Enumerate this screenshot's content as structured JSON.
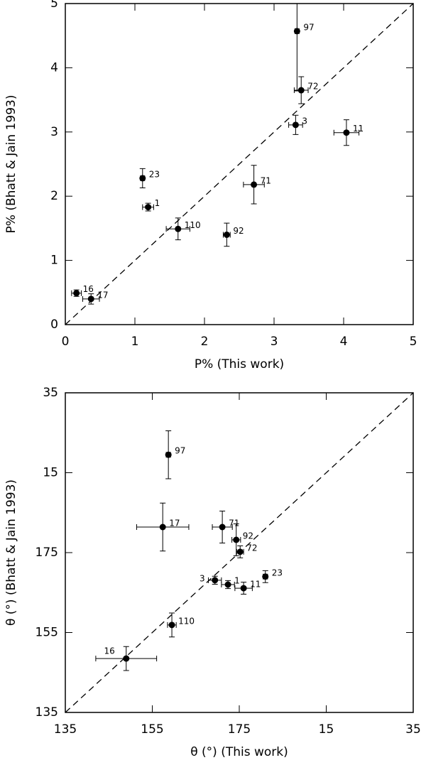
{
  "chart_data": [
    {
      "type": "scatter",
      "xlabel": "P% (This work)",
      "ylabel": "P% (Bhatt & Jain 1993)",
      "xlim": [
        0,
        5
      ],
      "ylim": [
        0,
        5
      ],
      "xticks": [
        0,
        1,
        2,
        3,
        4,
        5
      ],
      "yticks": [
        0,
        1,
        2,
        3,
        4,
        5
      ],
      "color": "#000000",
      "labels": [
        "97",
        "72",
        "3",
        "11",
        "71",
        "23",
        "1",
        "110",
        "92",
        "16",
        "17"
      ],
      "x": [
        3.33,
        3.39,
        3.31,
        4.04,
        2.71,
        1.11,
        1.19,
        1.62,
        2.32,
        0.16,
        0.37
      ],
      "y": [
        4.57,
        3.65,
        3.11,
        2.99,
        2.18,
        2.28,
        1.83,
        1.49,
        1.4,
        0.49,
        0.4
      ],
      "xerr": [
        0.03,
        0.1,
        0.1,
        0.18,
        0.15,
        0.03,
        0.08,
        0.17,
        0.05,
        0.07,
        0.12
      ],
      "yerr": [
        0.93,
        0.21,
        0.15,
        0.2,
        0.3,
        0.15,
        0.06,
        0.17,
        0.18,
        0.05,
        0.08
      ]
    },
    {
      "type": "scatter",
      "xlabel": "θ (°) (This work)",
      "ylabel": "θ (°) (Bhatt & Jain 1993)",
      "xlim": [
        135,
        215
      ],
      "ylim": [
        135,
        215
      ],
      "xticks": [
        135,
        155,
        175,
        {
          "value": 195,
          "label": "15"
        },
        {
          "value": 215,
          "label": "35"
        }
      ],
      "yticks": [
        135,
        155,
        175,
        {
          "value": 195,
          "label": "15"
        },
        {
          "value": 215,
          "label": "35"
        }
      ],
      "color": "#000000",
      "labels": [
        "97",
        "17",
        "71",
        "92",
        "72",
        "23",
        "3",
        "1",
        "11",
        "110",
        "16"
      ],
      "x": [
        158.7,
        157.4,
        171.1,
        174.3,
        175.2,
        181.0,
        169.4,
        172.4,
        176.0,
        159.5,
        149.0
      ],
      "y": [
        199.5,
        181.4,
        181.4,
        178.2,
        175.2,
        169.0,
        168.1,
        167.0,
        166.1,
        156.9,
        148.5
      ],
      "xerr": [
        0.5,
        6.0,
        2.3,
        1.0,
        0.8,
        0.5,
        1.5,
        1.5,
        2.0,
        1.0,
        7.0
      ],
      "yerr": [
        6.0,
        6.0,
        4.0,
        4.0,
        1.5,
        1.5,
        1.0,
        1.0,
        1.5,
        3.0,
        3.0
      ]
    }
  ]
}
